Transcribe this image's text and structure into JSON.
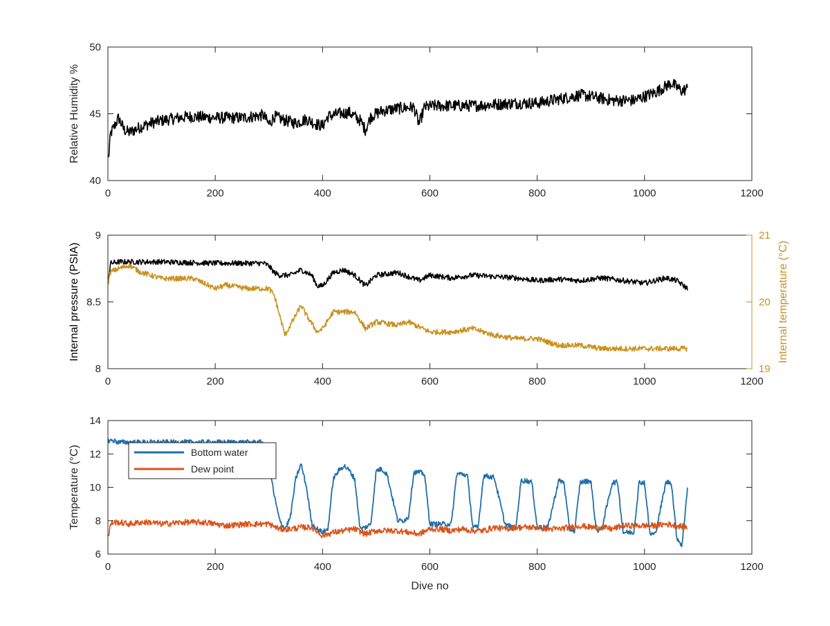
{
  "figure": {
    "background": "#ffffff",
    "axis_color": "#262626"
  },
  "chart_data": [
    {
      "id": "humidity",
      "type": "line",
      "xlabel": "",
      "ylabel": "Relative Humidity %",
      "xlim": [
        0,
        1200
      ],
      "ylim": [
        40,
        50
      ],
      "xticks": [
        0,
        200,
        400,
        600,
        800,
        1000,
        1200
      ],
      "yticks": [
        40,
        45,
        50
      ],
      "grid": false,
      "series": [
        {
          "color": "#000000",
          "noise": 0.45,
          "x": [
            1,
            5,
            10,
            20,
            30,
            40,
            60,
            80,
            100,
            150,
            200,
            250,
            290,
            300,
            310,
            330,
            350,
            370,
            390,
            400,
            410,
            430,
            450,
            470,
            480,
            490,
            510,
            540,
            570,
            580,
            590,
            610,
            640,
            680,
            720,
            760,
            800,
            840,
            880,
            900,
            940,
            980,
            1000,
            1020,
            1050,
            1070,
            1080
          ],
          "y": [
            41.6,
            43.5,
            43.9,
            44.7,
            43.8,
            43.6,
            44.0,
            44.3,
            44.5,
            44.8,
            44.7,
            44.7,
            44.9,
            44.2,
            44.8,
            44.5,
            44.3,
            44.6,
            44.2,
            44.1,
            44.8,
            45.0,
            45.1,
            44.5,
            43.8,
            44.8,
            45.2,
            45.4,
            45.5,
            44.2,
            45.5,
            45.6,
            45.6,
            45.6,
            45.7,
            45.8,
            45.8,
            46.1,
            46.4,
            46.3,
            46.0,
            46.0,
            46.3,
            46.6,
            47.3,
            46.7,
            46.9
          ]
        }
      ]
    },
    {
      "id": "pressure",
      "type": "line",
      "xlabel": "",
      "ylabel": "Internal pressure (PSIA)",
      "ylabel_right": "Internal temperature (°C)",
      "xlim": [
        0,
        1200
      ],
      "ylim": [
        8,
        9
      ],
      "ylim_right": [
        19,
        21
      ],
      "xticks": [
        0,
        200,
        400,
        600,
        800,
        1000,
        1200
      ],
      "yticks": [
        8,
        8.5,
        9
      ],
      "yticks_right": [
        19,
        20,
        21
      ],
      "grid": false,
      "series": [
        {
          "color": "#000000",
          "axis": "left",
          "noise": 0.02,
          "x": [
            1,
            5,
            20,
            100,
            200,
            290,
            300,
            310,
            320,
            340,
            360,
            380,
            390,
            400,
            420,
            440,
            460,
            480,
            500,
            540,
            580,
            600,
            640,
            680,
            720,
            760,
            800,
            840,
            880,
            920,
            960,
            1000,
            1040,
            1060,
            1080
          ],
          "y": [
            8.67,
            8.79,
            8.8,
            8.8,
            8.79,
            8.79,
            8.77,
            8.72,
            8.7,
            8.7,
            8.74,
            8.7,
            8.62,
            8.62,
            8.72,
            8.74,
            8.7,
            8.62,
            8.7,
            8.72,
            8.66,
            8.7,
            8.68,
            8.7,
            8.69,
            8.68,
            8.66,
            8.67,
            8.66,
            8.68,
            8.66,
            8.64,
            8.68,
            8.66,
            8.6
          ]
        },
        {
          "color": "#c9901e",
          "axis": "right",
          "noise": 0.04,
          "x": [
            1,
            5,
            20,
            40,
            60,
            100,
            160,
            200,
            220,
            260,
            300,
            310,
            330,
            350,
            360,
            370,
            390,
            400,
            420,
            440,
            460,
            480,
            500,
            540,
            560,
            600,
            640,
            680,
            720,
            760,
            800,
            840,
            880,
            920,
            960,
            1000,
            1040,
            1080
          ],
          "y": [
            20.3,
            20.45,
            20.5,
            20.55,
            20.45,
            20.35,
            20.35,
            20.2,
            20.25,
            20.2,
            20.2,
            20.1,
            19.5,
            19.8,
            19.95,
            19.8,
            19.55,
            19.6,
            19.85,
            19.85,
            19.85,
            19.6,
            19.7,
            19.65,
            19.7,
            19.55,
            19.55,
            19.6,
            19.5,
            19.45,
            19.45,
            19.35,
            19.35,
            19.3,
            19.3,
            19.3,
            19.3,
            19.3
          ]
        }
      ]
    },
    {
      "id": "temperature",
      "type": "line",
      "xlabel": "Dive no",
      "ylabel": "Temperature (°C)",
      "xlim": [
        0,
        1200
      ],
      "ylim": [
        6,
        14
      ],
      "xticks": [
        0,
        200,
        400,
        600,
        800,
        1000,
        1200
      ],
      "yticks": [
        6,
        8,
        10,
        12,
        14
      ],
      "grid": false,
      "legend": "top-left",
      "series": [
        {
          "name": "Bottom water",
          "color": "#1f6fa8",
          "noise": 0.15,
          "x": [
            1,
            10,
            20,
            40,
            60,
            80,
            100,
            140,
            180,
            220,
            260,
            290,
            300,
            310,
            320,
            330,
            340,
            350,
            360,
            370,
            380,
            390,
            400,
            410,
            420,
            430,
            440,
            450,
            460,
            470,
            480,
            490,
            500,
            510,
            520,
            540,
            550,
            560,
            570,
            580,
            590,
            600,
            620,
            640,
            650,
            660,
            670,
            680,
            690,
            700,
            720,
            740,
            760,
            770,
            780,
            790,
            800,
            820,
            840,
            850,
            860,
            870,
            880,
            900,
            910,
            920,
            940,
            950,
            960,
            980,
            990,
            1000,
            1010,
            1020,
            1040,
            1050,
            1060,
            1070,
            1080
          ],
          "y": [
            12.8,
            12.8,
            12.7,
            12.7,
            12.7,
            12.7,
            12.7,
            12.7,
            12.7,
            12.7,
            12.7,
            12.7,
            11.5,
            9.5,
            8.0,
            7.5,
            8.2,
            10.5,
            11.4,
            10.0,
            7.8,
            7.5,
            7.3,
            7.5,
            10.5,
            11.0,
            11.3,
            11.0,
            10.5,
            7.5,
            7.6,
            7.8,
            11.0,
            11.1,
            10.8,
            8.0,
            8.0,
            8.2,
            10.9,
            10.9,
            10.8,
            7.8,
            7.8,
            7.8,
            10.8,
            10.8,
            10.7,
            7.6,
            7.6,
            10.7,
            10.6,
            7.8,
            7.5,
            10.4,
            10.4,
            10.3,
            7.6,
            7.6,
            10.4,
            10.3,
            7.5,
            7.4,
            10.3,
            10.4,
            7.4,
            7.5,
            10.3,
            10.3,
            7.3,
            7.3,
            10.3,
            10.3,
            7.2,
            7.2,
            10.3,
            10.3,
            7.0,
            6.5,
            10.0
          ]
        },
        {
          "name": "Dew point",
          "color": "#d95319",
          "noise": 0.18,
          "x": [
            1,
            5,
            10,
            20,
            40,
            60,
            80,
            100,
            140,
            180,
            220,
            260,
            300,
            320,
            340,
            360,
            380,
            400,
            420,
            440,
            460,
            480,
            500,
            520,
            540,
            560,
            580,
            600,
            620,
            640,
            660,
            680,
            700,
            720,
            740,
            760,
            780,
            800,
            820,
            840,
            860,
            880,
            900,
            920,
            940,
            960,
            980,
            1000,
            1020,
            1040,
            1060,
            1080
          ],
          "y": [
            7.0,
            7.8,
            7.9,
            7.9,
            7.8,
            7.9,
            7.9,
            7.8,
            7.9,
            7.9,
            7.7,
            7.8,
            7.8,
            7.5,
            7.5,
            7.6,
            7.6,
            7.1,
            7.3,
            7.4,
            7.5,
            7.2,
            7.4,
            7.4,
            7.4,
            7.3,
            7.2,
            7.5,
            7.5,
            7.4,
            7.5,
            7.4,
            7.4,
            7.6,
            7.5,
            7.6,
            7.6,
            7.6,
            7.5,
            7.5,
            7.6,
            7.7,
            7.6,
            7.6,
            7.5,
            7.7,
            7.7,
            7.7,
            7.7,
            7.8,
            7.7,
            7.6
          ]
        }
      ]
    }
  ]
}
